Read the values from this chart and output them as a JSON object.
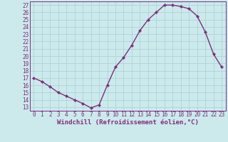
{
  "x": [
    0,
    1,
    2,
    3,
    4,
    5,
    6,
    7,
    8,
    9,
    10,
    11,
    12,
    13,
    14,
    15,
    16,
    17,
    18,
    19,
    20,
    21,
    22,
    23
  ],
  "y": [
    17.0,
    16.5,
    15.8,
    15.0,
    14.5,
    14.0,
    13.5,
    12.9,
    13.3,
    16.0,
    18.5,
    19.8,
    21.5,
    23.5,
    25.0,
    26.0,
    27.0,
    27.0,
    26.8,
    26.5,
    25.5,
    23.3,
    20.3,
    18.5
  ],
  "line_color": "#7b2f7b",
  "marker": "D",
  "marker_size": 2.2,
  "xlabel": "Windchill (Refroidissement éolien,°C)",
  "xlabel_fontsize": 6.5,
  "ylabel_ticks": [
    13,
    14,
    15,
    16,
    17,
    18,
    19,
    20,
    21,
    22,
    23,
    24,
    25,
    26,
    27
  ],
  "xticks": [
    0,
    1,
    2,
    3,
    4,
    5,
    6,
    7,
    8,
    9,
    10,
    11,
    12,
    13,
    14,
    15,
    16,
    17,
    18,
    19,
    20,
    21,
    22,
    23
  ],
  "ylim": [
    12.5,
    27.5
  ],
  "xlim": [
    -0.5,
    23.5
  ],
  "bg_color": "#cce9ec",
  "grid_color": "#add4d8",
  "tick_fontsize": 5.5,
  "line_width": 1.0
}
